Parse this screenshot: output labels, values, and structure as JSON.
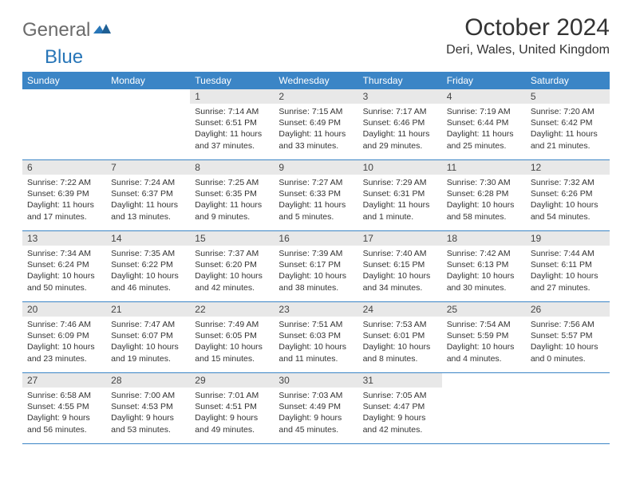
{
  "brand": {
    "part1": "General",
    "part2": "Blue"
  },
  "title": "October 2024",
  "location": "Deri, Wales, United Kingdom",
  "colors": {
    "header_bg": "#3b85c6",
    "header_text": "#ffffff",
    "daynum_bg": "#e8e8e8",
    "text": "#333333",
    "brand_gray": "#6b6b6b",
    "brand_blue": "#2876b8",
    "page_bg": "#ffffff"
  },
  "dow": [
    "Sunday",
    "Monday",
    "Tuesday",
    "Wednesday",
    "Thursday",
    "Friday",
    "Saturday"
  ],
  "weeks": [
    [
      null,
      null,
      {
        "n": "1",
        "sr": "7:14 AM",
        "ss": "6:51 PM",
        "dl": "11 hours and 37 minutes."
      },
      {
        "n": "2",
        "sr": "7:15 AM",
        "ss": "6:49 PM",
        "dl": "11 hours and 33 minutes."
      },
      {
        "n": "3",
        "sr": "7:17 AM",
        "ss": "6:46 PM",
        "dl": "11 hours and 29 minutes."
      },
      {
        "n": "4",
        "sr": "7:19 AM",
        "ss": "6:44 PM",
        "dl": "11 hours and 25 minutes."
      },
      {
        "n": "5",
        "sr": "7:20 AM",
        "ss": "6:42 PM",
        "dl": "11 hours and 21 minutes."
      }
    ],
    [
      {
        "n": "6",
        "sr": "7:22 AM",
        "ss": "6:39 PM",
        "dl": "11 hours and 17 minutes."
      },
      {
        "n": "7",
        "sr": "7:24 AM",
        "ss": "6:37 PM",
        "dl": "11 hours and 13 minutes."
      },
      {
        "n": "8",
        "sr": "7:25 AM",
        "ss": "6:35 PM",
        "dl": "11 hours and 9 minutes."
      },
      {
        "n": "9",
        "sr": "7:27 AM",
        "ss": "6:33 PM",
        "dl": "11 hours and 5 minutes."
      },
      {
        "n": "10",
        "sr": "7:29 AM",
        "ss": "6:31 PM",
        "dl": "11 hours and 1 minute."
      },
      {
        "n": "11",
        "sr": "7:30 AM",
        "ss": "6:28 PM",
        "dl": "10 hours and 58 minutes."
      },
      {
        "n": "12",
        "sr": "7:32 AM",
        "ss": "6:26 PM",
        "dl": "10 hours and 54 minutes."
      }
    ],
    [
      {
        "n": "13",
        "sr": "7:34 AM",
        "ss": "6:24 PM",
        "dl": "10 hours and 50 minutes."
      },
      {
        "n": "14",
        "sr": "7:35 AM",
        "ss": "6:22 PM",
        "dl": "10 hours and 46 minutes."
      },
      {
        "n": "15",
        "sr": "7:37 AM",
        "ss": "6:20 PM",
        "dl": "10 hours and 42 minutes."
      },
      {
        "n": "16",
        "sr": "7:39 AM",
        "ss": "6:17 PM",
        "dl": "10 hours and 38 minutes."
      },
      {
        "n": "17",
        "sr": "7:40 AM",
        "ss": "6:15 PM",
        "dl": "10 hours and 34 minutes."
      },
      {
        "n": "18",
        "sr": "7:42 AM",
        "ss": "6:13 PM",
        "dl": "10 hours and 30 minutes."
      },
      {
        "n": "19",
        "sr": "7:44 AM",
        "ss": "6:11 PM",
        "dl": "10 hours and 27 minutes."
      }
    ],
    [
      {
        "n": "20",
        "sr": "7:46 AM",
        "ss": "6:09 PM",
        "dl": "10 hours and 23 minutes."
      },
      {
        "n": "21",
        "sr": "7:47 AM",
        "ss": "6:07 PM",
        "dl": "10 hours and 19 minutes."
      },
      {
        "n": "22",
        "sr": "7:49 AM",
        "ss": "6:05 PM",
        "dl": "10 hours and 15 minutes."
      },
      {
        "n": "23",
        "sr": "7:51 AM",
        "ss": "6:03 PM",
        "dl": "10 hours and 11 minutes."
      },
      {
        "n": "24",
        "sr": "7:53 AM",
        "ss": "6:01 PM",
        "dl": "10 hours and 8 minutes."
      },
      {
        "n": "25",
        "sr": "7:54 AM",
        "ss": "5:59 PM",
        "dl": "10 hours and 4 minutes."
      },
      {
        "n": "26",
        "sr": "7:56 AM",
        "ss": "5:57 PM",
        "dl": "10 hours and 0 minutes."
      }
    ],
    [
      {
        "n": "27",
        "sr": "6:58 AM",
        "ss": "4:55 PM",
        "dl": "9 hours and 56 minutes."
      },
      {
        "n": "28",
        "sr": "7:00 AM",
        "ss": "4:53 PM",
        "dl": "9 hours and 53 minutes."
      },
      {
        "n": "29",
        "sr": "7:01 AM",
        "ss": "4:51 PM",
        "dl": "9 hours and 49 minutes."
      },
      {
        "n": "30",
        "sr": "7:03 AM",
        "ss": "4:49 PM",
        "dl": "9 hours and 45 minutes."
      },
      {
        "n": "31",
        "sr": "7:05 AM",
        "ss": "4:47 PM",
        "dl": "9 hours and 42 minutes."
      },
      null,
      null
    ]
  ],
  "labels": {
    "sunrise": "Sunrise: ",
    "sunset": "Sunset: ",
    "daylight": "Daylight: "
  }
}
